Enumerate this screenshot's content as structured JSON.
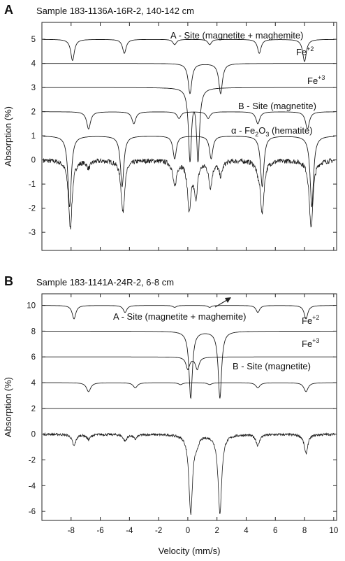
{
  "chart_data": [
    {
      "panel": "A",
      "type": "line",
      "title": "Sample 183-1136A-16R-2, 140-142 cm",
      "ylabel": "Absorption (%)",
      "xlim": [
        -10,
        10.2
      ],
      "ylim": [
        -3.75,
        5.7
      ],
      "x_ticks": [
        -8,
        -6,
        -4,
        -2,
        0,
        2,
        4,
        6,
        8,
        10
      ],
      "y_ticks": [
        -3,
        -2,
        -1,
        0,
        1,
        2,
        3,
        4,
        5
      ],
      "annotations": [
        {
          "id": "a_site",
          "label": "A - Site (magnetite + maghemite)"
        },
        {
          "id": "fe2",
          "base": "Fe",
          "sup": "+2"
        },
        {
          "id": "fe3",
          "base": "Fe",
          "sup": "+3"
        },
        {
          "id": "b_site",
          "label": "B - Site (magnetite)"
        },
        {
          "id": "hematite",
          "pre": "α - Fe",
          "sub1": "2",
          "mid": "O",
          "sub2": "3",
          "post": " (hematite)"
        }
      ],
      "series": [
        {
          "id": "A-site",
          "baseline": 5,
          "width": 0.3,
          "lines": [
            [
              -7.9,
              0.88
            ],
            [
              -4.35,
              0.58
            ],
            [
              -0.9,
              0.22
            ],
            [
              1.5,
              0.22
            ],
            [
              4.9,
              0.58
            ],
            [
              8.0,
              0.92
            ]
          ]
        },
        {
          "id": "Fe+2",
          "baseline": 4,
          "width": 0.3,
          "lines": [
            [
              0.15,
              1.25
            ],
            [
              2.25,
              1.25
            ]
          ]
        },
        {
          "id": "Fe+3",
          "baseline": 3,
          "width": 0.25,
          "lines": [
            [
              0.15,
              2.95
            ],
            [
              0.7,
              2.95
            ]
          ]
        },
        {
          "id": "B-site",
          "baseline": 2,
          "width": 0.32,
          "lines": [
            [
              -6.8,
              0.72
            ],
            [
              -3.7,
              0.5
            ],
            [
              -0.6,
              0.28
            ],
            [
              1.4,
              0.28
            ],
            [
              4.8,
              0.5
            ],
            [
              8.2,
              0.72
            ]
          ]
        },
        {
          "id": "hematite",
          "baseline": 1,
          "width": 0.28,
          "lines": [
            [
              -8.1,
              2.95
            ],
            [
              -4.5,
              2.1
            ],
            [
              -0.9,
              0.95
            ],
            [
              1.6,
              0.95
            ],
            [
              5.1,
              2.1
            ],
            [
              8.5,
              2.95
            ]
          ]
        },
        {
          "id": "measured",
          "baseline": 0,
          "noise": 0.1,
          "width": 0.3,
          "lines": [
            [
              -8.05,
              2.8
            ],
            [
              -4.45,
              2.15
            ],
            [
              -0.9,
              1.05
            ],
            [
              0.1,
              2.0
            ],
            [
              0.55,
              1.4
            ],
            [
              1.55,
              1.05
            ],
            [
              2.25,
              0.6
            ],
            [
              5.1,
              2.15
            ],
            [
              8.45,
              2.85
            ],
            [
              -6.8,
              0.3
            ],
            [
              4.8,
              0.3
            ]
          ]
        }
      ]
    },
    {
      "panel": "B",
      "type": "line",
      "title": "Sample 183-1141A-24R-2, 6-8 cm",
      "ylabel": "Absorption (%)",
      "xlabel": "Velocity (mm/s)",
      "xlim": [
        -10,
        10.2
      ],
      "ylim": [
        -6.7,
        10.9
      ],
      "x_ticks": [
        -8,
        -6,
        -4,
        -2,
        0,
        2,
        4,
        6,
        8,
        10
      ],
      "y_ticks": [
        -6,
        -4,
        -2,
        0,
        2,
        4,
        6,
        8,
        10
      ],
      "annotations": [
        {
          "id": "a_site",
          "label": "A - Site (magnetite + maghemite)"
        },
        {
          "id": "fe2",
          "base": "Fe",
          "sup": "+2"
        },
        {
          "id": "fe3",
          "base": "Fe",
          "sup": "+3"
        },
        {
          "id": "b_site",
          "label": "B - Site (magnetite)"
        }
      ],
      "series": [
        {
          "id": "A-site",
          "baseline": 10,
          "width": 0.3,
          "lines": [
            [
              -7.8,
              1.05
            ],
            [
              -4.3,
              0.55
            ],
            [
              -0.9,
              0.15
            ],
            [
              1.5,
              0.15
            ],
            [
              4.8,
              0.55
            ],
            [
              8.1,
              1.05
            ]
          ]
        },
        {
          "id": "Fe+2",
          "baseline": 8,
          "width": 0.28,
          "lines": [
            [
              0.2,
              5.2
            ],
            [
              2.2,
              5.2
            ]
          ]
        },
        {
          "id": "Fe+3",
          "baseline": 6,
          "width": 0.3,
          "lines": [
            [
              0.0,
              0.95
            ],
            [
              0.65,
              0.95
            ]
          ]
        },
        {
          "id": "B-site",
          "baseline": 4,
          "width": 0.35,
          "lines": [
            [
              -6.8,
              0.7
            ],
            [
              -3.6,
              0.4
            ],
            [
              -0.5,
              0.15
            ],
            [
              1.5,
              0.15
            ],
            [
              4.8,
              0.4
            ],
            [
              8.1,
              0.7
            ]
          ]
        },
        {
          "id": "baseline",
          "baseline": 2,
          "width": 0.3,
          "lines": []
        },
        {
          "id": "measured",
          "baseline": 0,
          "noise": 0.09,
          "width": 0.3,
          "lines": [
            [
              -7.8,
              0.9
            ],
            [
              -4.3,
              0.5
            ],
            [
              -6.8,
              0.4
            ],
            [
              -3.6,
              0.35
            ],
            [
              0.2,
              6.1
            ],
            [
              2.2,
              6.1
            ],
            [
              0.6,
              0.6
            ],
            [
              4.8,
              0.85
            ],
            [
              8.1,
              1.5
            ]
          ]
        }
      ]
    }
  ]
}
